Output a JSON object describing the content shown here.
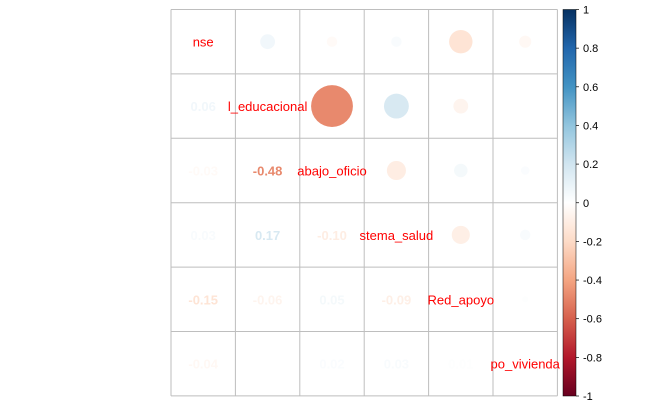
{
  "chart_data": {
    "type": "heatmap",
    "variables": [
      "nse",
      "nivel_educacional",
      "trabajo_oficio",
      "sistema_salud",
      "Red_apoyo",
      "tipo_vivienda"
    ],
    "diagonal_labels": [
      "nse",
      "l_educacional",
      "abajo_oficio",
      "stema_salud",
      "Red_apoyo",
      "po_vivienda"
    ],
    "correlations": [
      [
        1.0,
        0.06,
        -0.03,
        0.03,
        -0.15,
        -0.04
      ],
      [
        0.06,
        1.0,
        -0.48,
        0.17,
        -0.06,
        0.0
      ],
      [
        -0.03,
        -0.48,
        1.0,
        -0.1,
        0.05,
        0.02
      ],
      [
        0.03,
        0.17,
        -0.1,
        1.0,
        -0.09,
        0.03
      ],
      [
        -0.15,
        -0.06,
        0.05,
        -0.09,
        1.0,
        0.01
      ],
      [
        -0.04,
        0.0,
        0.02,
        0.03,
        0.01,
        1.0
      ]
    ],
    "lower_labels": [
      [
        "",
        "",
        "",
        "",
        "",
        ""
      ],
      [
        "0.06",
        "",
        "",
        "",
        "",
        ""
      ],
      [
        "-0.03",
        "-0.48",
        "",
        "",
        "",
        ""
      ],
      [
        "0.03",
        "0.17",
        "-0.10",
        "",
        "",
        ""
      ],
      [
        "-0.15",
        "-0.06",
        "0.05",
        "-0.09",
        "",
        ""
      ],
      [
        "-0.04",
        "0.00",
        "0.02",
        "0.03",
        "0.01",
        ""
      ]
    ],
    "legend": {
      "position": "right",
      "ticks": [
        "1",
        "0.8",
        "0.6",
        "0.4",
        "0.2",
        "0",
        "-0.2",
        "-0.4",
        "-0.6",
        "-0.8",
        "-1"
      ],
      "min": -1,
      "max": 1
    },
    "upper_method": "circle",
    "lower_method": "number",
    "grid": true
  },
  "colors": {
    "label_color": "#FF0000",
    "grid_color": "#BEBEBE",
    "scale": [
      "#67001F",
      "#B2182B",
      "#D6604D",
      "#F4A582",
      "#FDDBC7",
      "#FFFFFF",
      "#D1E5F0",
      "#92C5DE",
      "#4393C3",
      "#2166AC",
      "#053061"
    ]
  }
}
